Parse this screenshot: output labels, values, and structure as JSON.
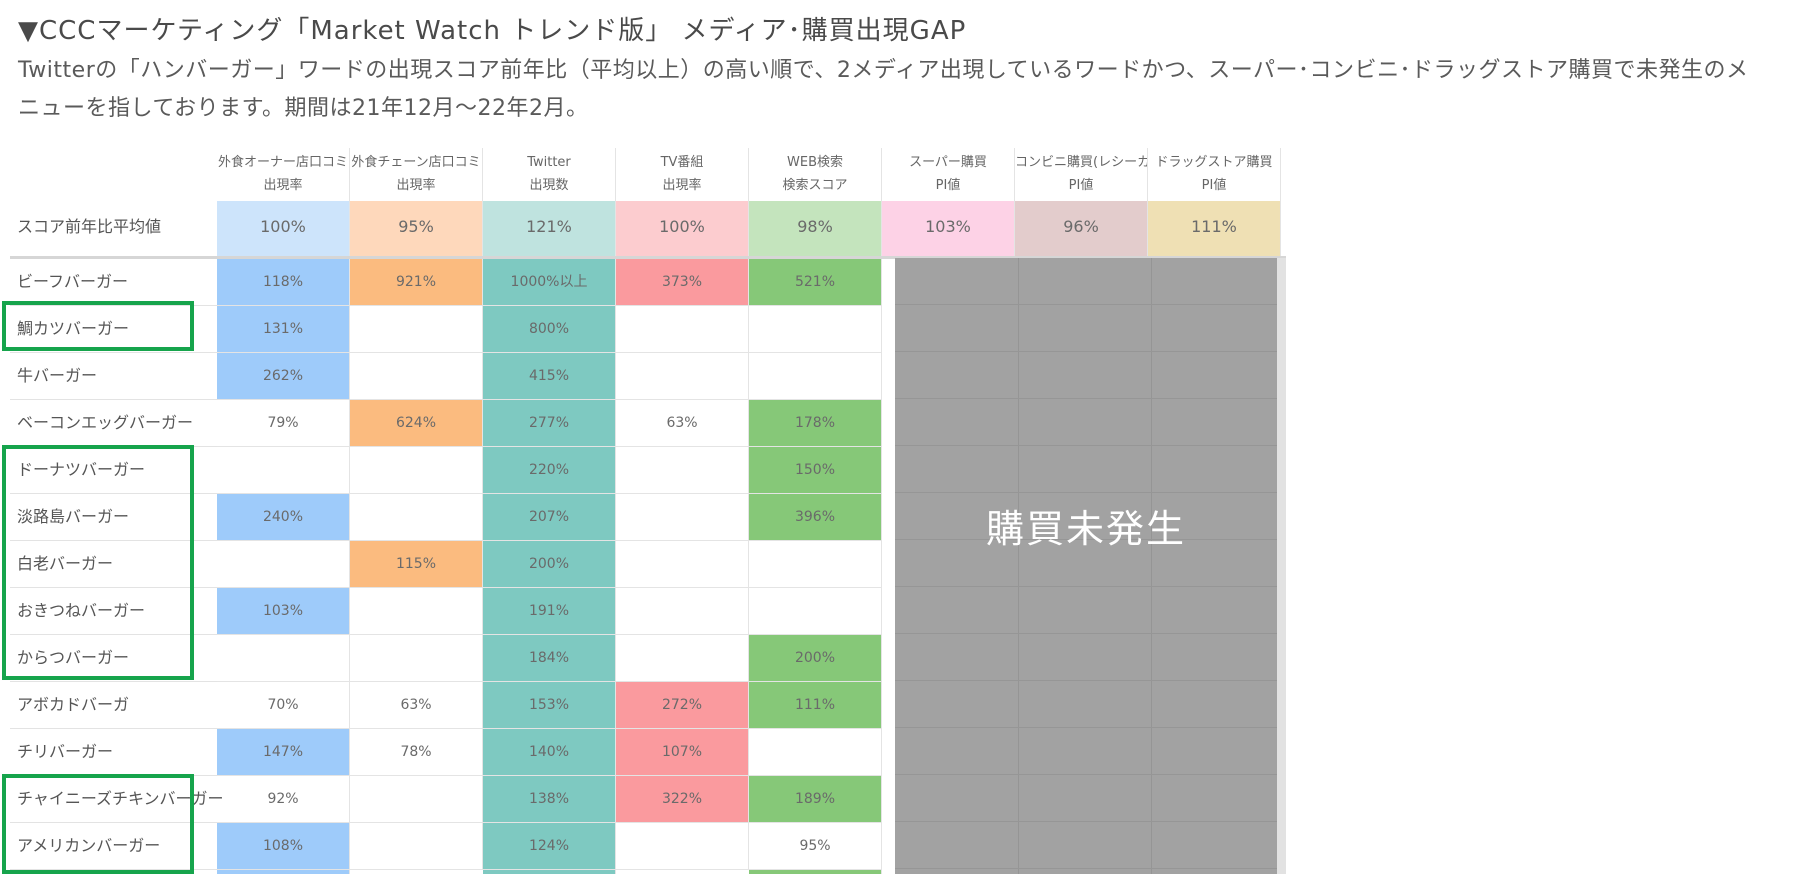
{
  "title": "▼CCCマーケティング「Market Watch トレンド版」 メディア･購買出現GAP",
  "description": "Twitterの「ハンバーガー」ワードの出現スコア前年比（平均以上）の高い順で、2メディア出現しているワードかつ、スーパー･コンビニ･ドラッグストア購買で未発生のメニューを指しております。期間は21年12月～22年2月。",
  "columns": [
    {
      "name": "外食オーナー店口コミ",
      "metric": "出現率"
    },
    {
      "name": "外食チェーン店口コミ",
      "metric": "出現率"
    },
    {
      "name": "Twitter",
      "metric": "出現数"
    },
    {
      "name": "TV番組",
      "metric": "出現率"
    },
    {
      "name": "WEB検索",
      "metric": "検索スコア"
    },
    {
      "name": "スーパー購買",
      "metric": "PI値"
    },
    {
      "name": "コンビニ購買(レシーカ)",
      "metric": "PI値"
    },
    {
      "name": "ドラッグストア購買",
      "metric": "PI値"
    }
  ],
  "average_row": {
    "label": "スコア前年比平均値",
    "values": [
      "100%",
      "95%",
      "121%",
      "100%",
      "98%",
      "103%",
      "96%",
      "111%"
    ],
    "colors": [
      "#cde4fb",
      "#fed8bb",
      "#bfe3df",
      "#fccccf",
      "#c4e4bd",
      "#fdd2e6",
      "#e3cccc",
      "#efe0b4"
    ]
  },
  "rows": [
    {
      "label": "ビーフバーガー",
      "values": [
        "118%",
        "921%",
        "1000%以上",
        "373%",
        "521%"
      ]
    },
    {
      "label": "鯛カツバーガー",
      "values": [
        "131%",
        "",
        "800%",
        "",
        ""
      ]
    },
    {
      "label": "牛バーガー",
      "values": [
        "262%",
        "",
        "415%",
        "",
        ""
      ]
    },
    {
      "label": "ベーコンエッグバーガー",
      "values": [
        "79%",
        "624%",
        "277%",
        "63%",
        "178%"
      ]
    },
    {
      "label": "ドーナツバーガー",
      "values": [
        "",
        "",
        "220%",
        "",
        "150%"
      ]
    },
    {
      "label": "淡路島バーガー",
      "values": [
        "240%",
        "",
        "207%",
        "",
        "396%"
      ]
    },
    {
      "label": "白老バーガー",
      "values": [
        "",
        "115%",
        "200%",
        "",
        ""
      ]
    },
    {
      "label": "おきつねバーガー",
      "values": [
        "103%",
        "",
        "191%",
        "",
        ""
      ]
    },
    {
      "label": "からつバーガー",
      "values": [
        "",
        "",
        "184%",
        "",
        "200%"
      ]
    },
    {
      "label": "アボカドバーガ",
      "values": [
        "70%",
        "63%",
        "153%",
        "272%",
        "111%"
      ]
    },
    {
      "label": "チリバーガー",
      "values": [
        "147%",
        "78%",
        "140%",
        "107%",
        ""
      ]
    },
    {
      "label": "チャイニーズチキンバーガー",
      "values": [
        "92%",
        "",
        "138%",
        "322%",
        "189%"
      ]
    },
    {
      "label": "アメリカンバーガー",
      "values": [
        "108%",
        "",
        "124%",
        "",
        "95%"
      ]
    }
  ],
  "fill_colors": {
    "owner": "#9ecbfa",
    "chain": "#fbbb7f",
    "twitter": "#7ec9c1",
    "tv": "#fa9a9e",
    "web": "#86c878"
  },
  "gap_label": "購買未発生",
  "highlight_color": "#16a44c"
}
